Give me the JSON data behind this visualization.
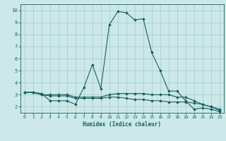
{
  "xlabel": "Humidex (Indice chaleur)",
  "bg_color": "#cce8e8",
  "grid_color": "#aacfcf",
  "line_color": "#1a6060",
  "spine_color": "#1a6060",
  "xlim": [
    -0.5,
    23.5
  ],
  "ylim": [
    1.5,
    10.5
  ],
  "xticks": [
    0,
    1,
    2,
    3,
    4,
    5,
    6,
    7,
    8,
    9,
    10,
    11,
    12,
    13,
    14,
    15,
    16,
    17,
    18,
    19,
    20,
    21,
    22,
    23
  ],
  "yticks": [
    2,
    3,
    4,
    5,
    6,
    7,
    8,
    9,
    10
  ],
  "series": [
    {
      "x": [
        0,
        1,
        2,
        3,
        4,
        5,
        6,
        7,
        8,
        9,
        10,
        11,
        12,
        13,
        14,
        15,
        16,
        17,
        18,
        19,
        20,
        21,
        22,
        23
      ],
      "y": [
        3.2,
        3.2,
        3.1,
        2.5,
        2.5,
        2.5,
        2.2,
        3.6,
        5.5,
        3.5,
        8.8,
        9.9,
        9.8,
        9.2,
        9.3,
        6.5,
        5.0,
        3.3,
        3.3,
        2.5,
        1.8,
        1.9,
        1.8,
        1.6
      ]
    },
    {
      "x": [
        0,
        1,
        2,
        3,
        4,
        5,
        6,
        7,
        8,
        9,
        10,
        11,
        12,
        13,
        14,
        15,
        16,
        17,
        18,
        19,
        20,
        21,
        22,
        23
      ],
      "y": [
        3.2,
        3.2,
        3.0,
        3.0,
        3.0,
        3.0,
        2.8,
        2.8,
        2.8,
        2.8,
        3.0,
        3.1,
        3.1,
        3.1,
        3.1,
        3.0,
        3.0,
        3.0,
        2.8,
        2.8,
        2.5,
        2.2,
        2.0,
        1.8
      ]
    },
    {
      "x": [
        0,
        1,
        2,
        3,
        4,
        5,
        6,
        7,
        8,
        9,
        10,
        11,
        12,
        13,
        14,
        15,
        16,
        17,
        18,
        19,
        20,
        21,
        22,
        23
      ],
      "y": [
        3.2,
        3.2,
        3.0,
        2.9,
        2.9,
        2.9,
        2.7,
        2.7,
        2.7,
        2.7,
        2.8,
        2.8,
        2.7,
        2.6,
        2.6,
        2.5,
        2.5,
        2.4,
        2.4,
        2.4,
        2.3,
        2.2,
        2.0,
        1.7
      ]
    }
  ]
}
